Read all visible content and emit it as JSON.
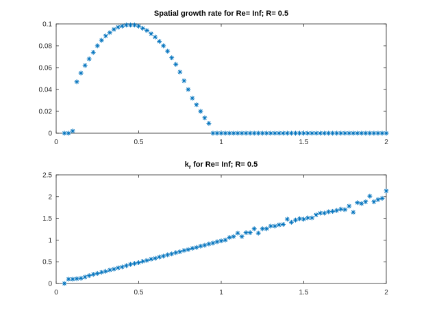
{
  "chart_data": [
    {
      "type": "scatter",
      "title": "Spatial growth rate for  Re= Inf; R= 0.5",
      "title_parts": [
        "Spatial growth rate for  Re= Inf; R= 0.5"
      ],
      "xlabel": "",
      "ylabel": "",
      "xlim": [
        0,
        2
      ],
      "ylim": [
        0,
        0.1
      ],
      "x_ticks": [
        "0",
        "0.5",
        "1",
        "1.5",
        "2"
      ],
      "y_ticks": [
        "0",
        "0.02",
        "0.04",
        "0.06",
        "0.08",
        "0.1"
      ],
      "marker": "asterisk",
      "color": "#0072bd",
      "grid": false,
      "series": [
        {
          "x": [
            0.05,
            0.075,
            0.1,
            0.125,
            0.15,
            0.175,
            0.2,
            0.225,
            0.25,
            0.275,
            0.3,
            0.325,
            0.35,
            0.375,
            0.4,
            0.425,
            0.45,
            0.475,
            0.5,
            0.525,
            0.55,
            0.575,
            0.6,
            0.625,
            0.65,
            0.675,
            0.7,
            0.725,
            0.75,
            0.775,
            0.8,
            0.825,
            0.85,
            0.875,
            0.9,
            0.925,
            0.95,
            0.975,
            1.0,
            1.025,
            1.05,
            1.075,
            1.1,
            1.125,
            1.15,
            1.175,
            1.2,
            1.225,
            1.25,
            1.275,
            1.3,
            1.325,
            1.35,
            1.375,
            1.4,
            1.425,
            1.45,
            1.475,
            1.5,
            1.525,
            1.55,
            1.575,
            1.6,
            1.625,
            1.65,
            1.675,
            1.7,
            1.725,
            1.75,
            1.775,
            1.8,
            1.825,
            1.85,
            1.875,
            1.9,
            1.925,
            1.95,
            1.975,
            2.0
          ],
          "y": [
            0,
            0,
            0.002,
            0.047,
            0.055,
            0.062,
            0.068,
            0.074,
            0.08,
            0.085,
            0.089,
            0.092,
            0.095,
            0.097,
            0.098,
            0.099,
            0.099,
            0.099,
            0.098,
            0.096,
            0.094,
            0.091,
            0.088,
            0.084,
            0.08,
            0.075,
            0.069,
            0.063,
            0.056,
            0.048,
            0.04,
            0.032,
            0.026,
            0.02,
            0.014,
            0.009,
            0,
            0,
            0,
            0,
            0,
            0,
            0,
            0,
            0,
            0,
            0,
            0,
            0,
            0,
            0,
            0,
            0,
            0,
            0,
            0,
            0,
            0,
            0,
            0,
            0,
            0,
            0,
            0,
            0,
            0,
            0,
            0,
            0,
            0,
            0,
            0,
            0,
            0,
            0,
            0,
            0,
            0,
            0
          ]
        }
      ]
    },
    {
      "type": "scatter",
      "title": "k_r for  Re= Inf; R= 0.5",
      "title_parts": [
        "k",
        "r",
        " for  Re= Inf; R= 0.5"
      ],
      "xlabel": "",
      "ylabel": "",
      "xlim": [
        0,
        2
      ],
      "ylim": [
        0,
        2.5
      ],
      "x_ticks": [
        "0",
        "0.5",
        "1",
        "1.5",
        "2"
      ],
      "y_ticks": [
        "0",
        "0.5",
        "1",
        "1.5",
        "2",
        "2.5"
      ],
      "marker": "asterisk",
      "color": "#0072bd",
      "grid": false,
      "series": [
        {
          "x": [
            0.05,
            0.075,
            0.1,
            0.125,
            0.15,
            0.175,
            0.2,
            0.225,
            0.25,
            0.275,
            0.3,
            0.325,
            0.35,
            0.375,
            0.4,
            0.425,
            0.45,
            0.475,
            0.5,
            0.525,
            0.55,
            0.575,
            0.6,
            0.625,
            0.65,
            0.675,
            0.7,
            0.725,
            0.75,
            0.775,
            0.8,
            0.825,
            0.85,
            0.875,
            0.9,
            0.925,
            0.95,
            0.975,
            1.0,
            1.025,
            1.05,
            1.075,
            1.1,
            1.125,
            1.15,
            1.175,
            1.2,
            1.225,
            1.25,
            1.275,
            1.3,
            1.325,
            1.35,
            1.375,
            1.4,
            1.425,
            1.45,
            1.475,
            1.5,
            1.525,
            1.55,
            1.575,
            1.6,
            1.625,
            1.65,
            1.675,
            1.7,
            1.725,
            1.75,
            1.775,
            1.8,
            1.825,
            1.85,
            1.875,
            1.9,
            1.925,
            1.95,
            1.975,
            2.0
          ],
          "y": [
            0,
            0.1,
            0.1,
            0.11,
            0.12,
            0.15,
            0.18,
            0.21,
            0.23,
            0.26,
            0.28,
            0.31,
            0.33,
            0.36,
            0.38,
            0.41,
            0.44,
            0.46,
            0.48,
            0.51,
            0.53,
            0.56,
            0.58,
            0.61,
            0.63,
            0.66,
            0.68,
            0.71,
            0.73,
            0.76,
            0.78,
            0.81,
            0.83,
            0.86,
            0.88,
            0.91,
            0.93,
            0.96,
            0.98,
            1.0,
            1.06,
            1.08,
            1.16,
            1.08,
            1.17,
            1.17,
            1.26,
            1.16,
            1.26,
            1.26,
            1.32,
            1.32,
            1.35,
            1.36,
            1.48,
            1.41,
            1.46,
            1.49,
            1.48,
            1.51,
            1.51,
            1.58,
            1.62,
            1.62,
            1.65,
            1.66,
            1.68,
            1.71,
            1.7,
            1.78,
            1.64,
            1.86,
            1.84,
            1.88,
            2.01,
            1.88,
            1.93,
            1.96,
            2.13
          ]
        }
      ]
    }
  ]
}
